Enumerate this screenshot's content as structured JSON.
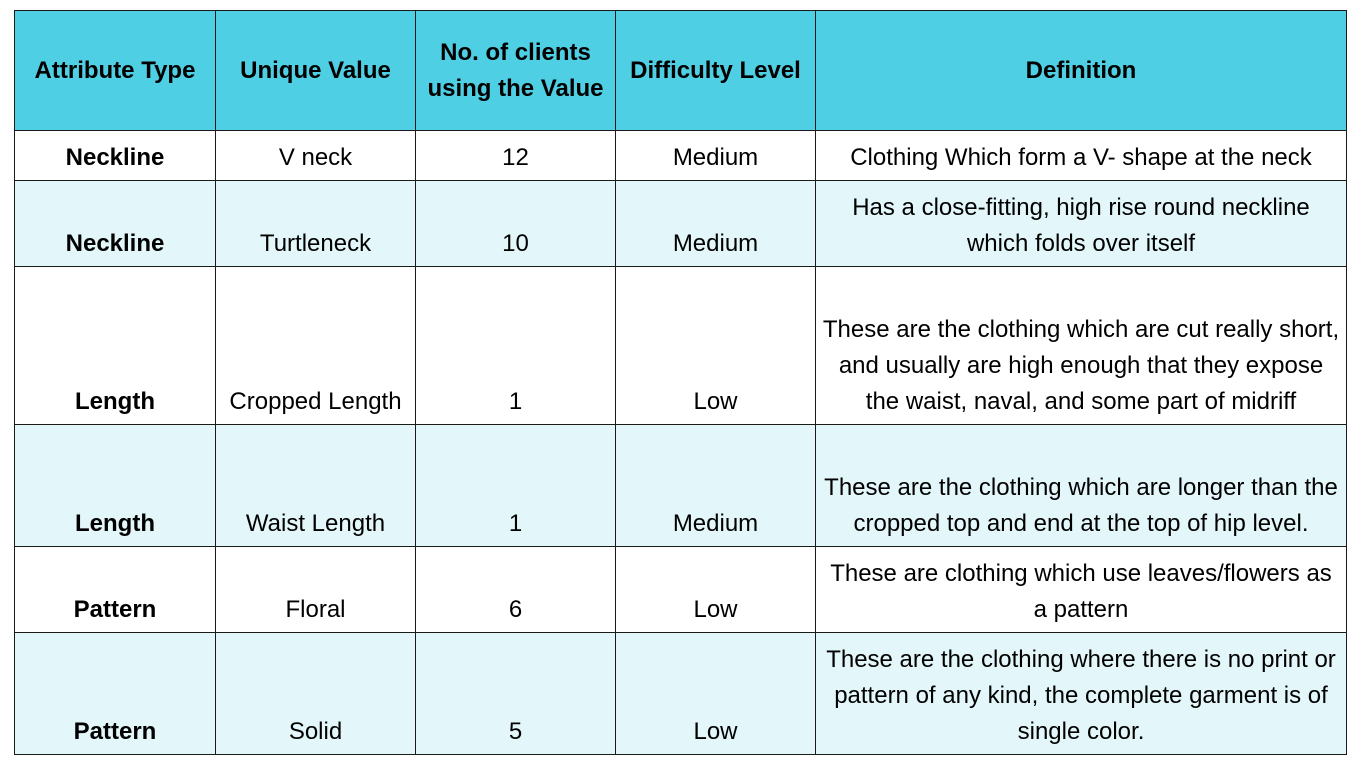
{
  "table": {
    "headers": [
      "Attribute Type",
      "Unique Value",
      "No. of clients using the Value",
      "Difficulty Level",
      "Definition"
    ],
    "rows": [
      {
        "attribute_type": "Neckline",
        "unique_value": "V neck",
        "clients": "12",
        "difficulty": "Medium",
        "definition": "Clothing Which form a V- shape at the neck"
      },
      {
        "attribute_type": "Neckline",
        "unique_value": "Turtleneck",
        "clients": "10",
        "difficulty": "Medium",
        "definition": "Has a close-fitting, high rise round neckline which folds over itself"
      },
      {
        "attribute_type": "Length",
        "unique_value": "Cropped Length",
        "clients": "1",
        "difficulty": "Low",
        "definition": "These are the clothing which are cut really short, and usually are high enough that they expose the waist, naval, and some part of midriff"
      },
      {
        "attribute_type": "Length",
        "unique_value": "Waist Length",
        "clients": "1",
        "difficulty": "Medium",
        "definition": "These are the clothing which are longer than the cropped top and end at the top of hip level."
      },
      {
        "attribute_type": "Pattern",
        "unique_value": "Floral",
        "clients": "6",
        "difficulty": "Low",
        "definition": "These are clothing which use leaves/flowers as a pattern"
      },
      {
        "attribute_type": "Pattern",
        "unique_value": "Solid",
        "clients": "5",
        "difficulty": "Low",
        "definition": "These are the clothing where there is no print or pattern of any kind, the complete garment is of single color."
      }
    ]
  },
  "colors": {
    "header_background": "#4fcfe3",
    "alternate_row_background": "#e3f6fa",
    "border": "#1a1a1a"
  }
}
